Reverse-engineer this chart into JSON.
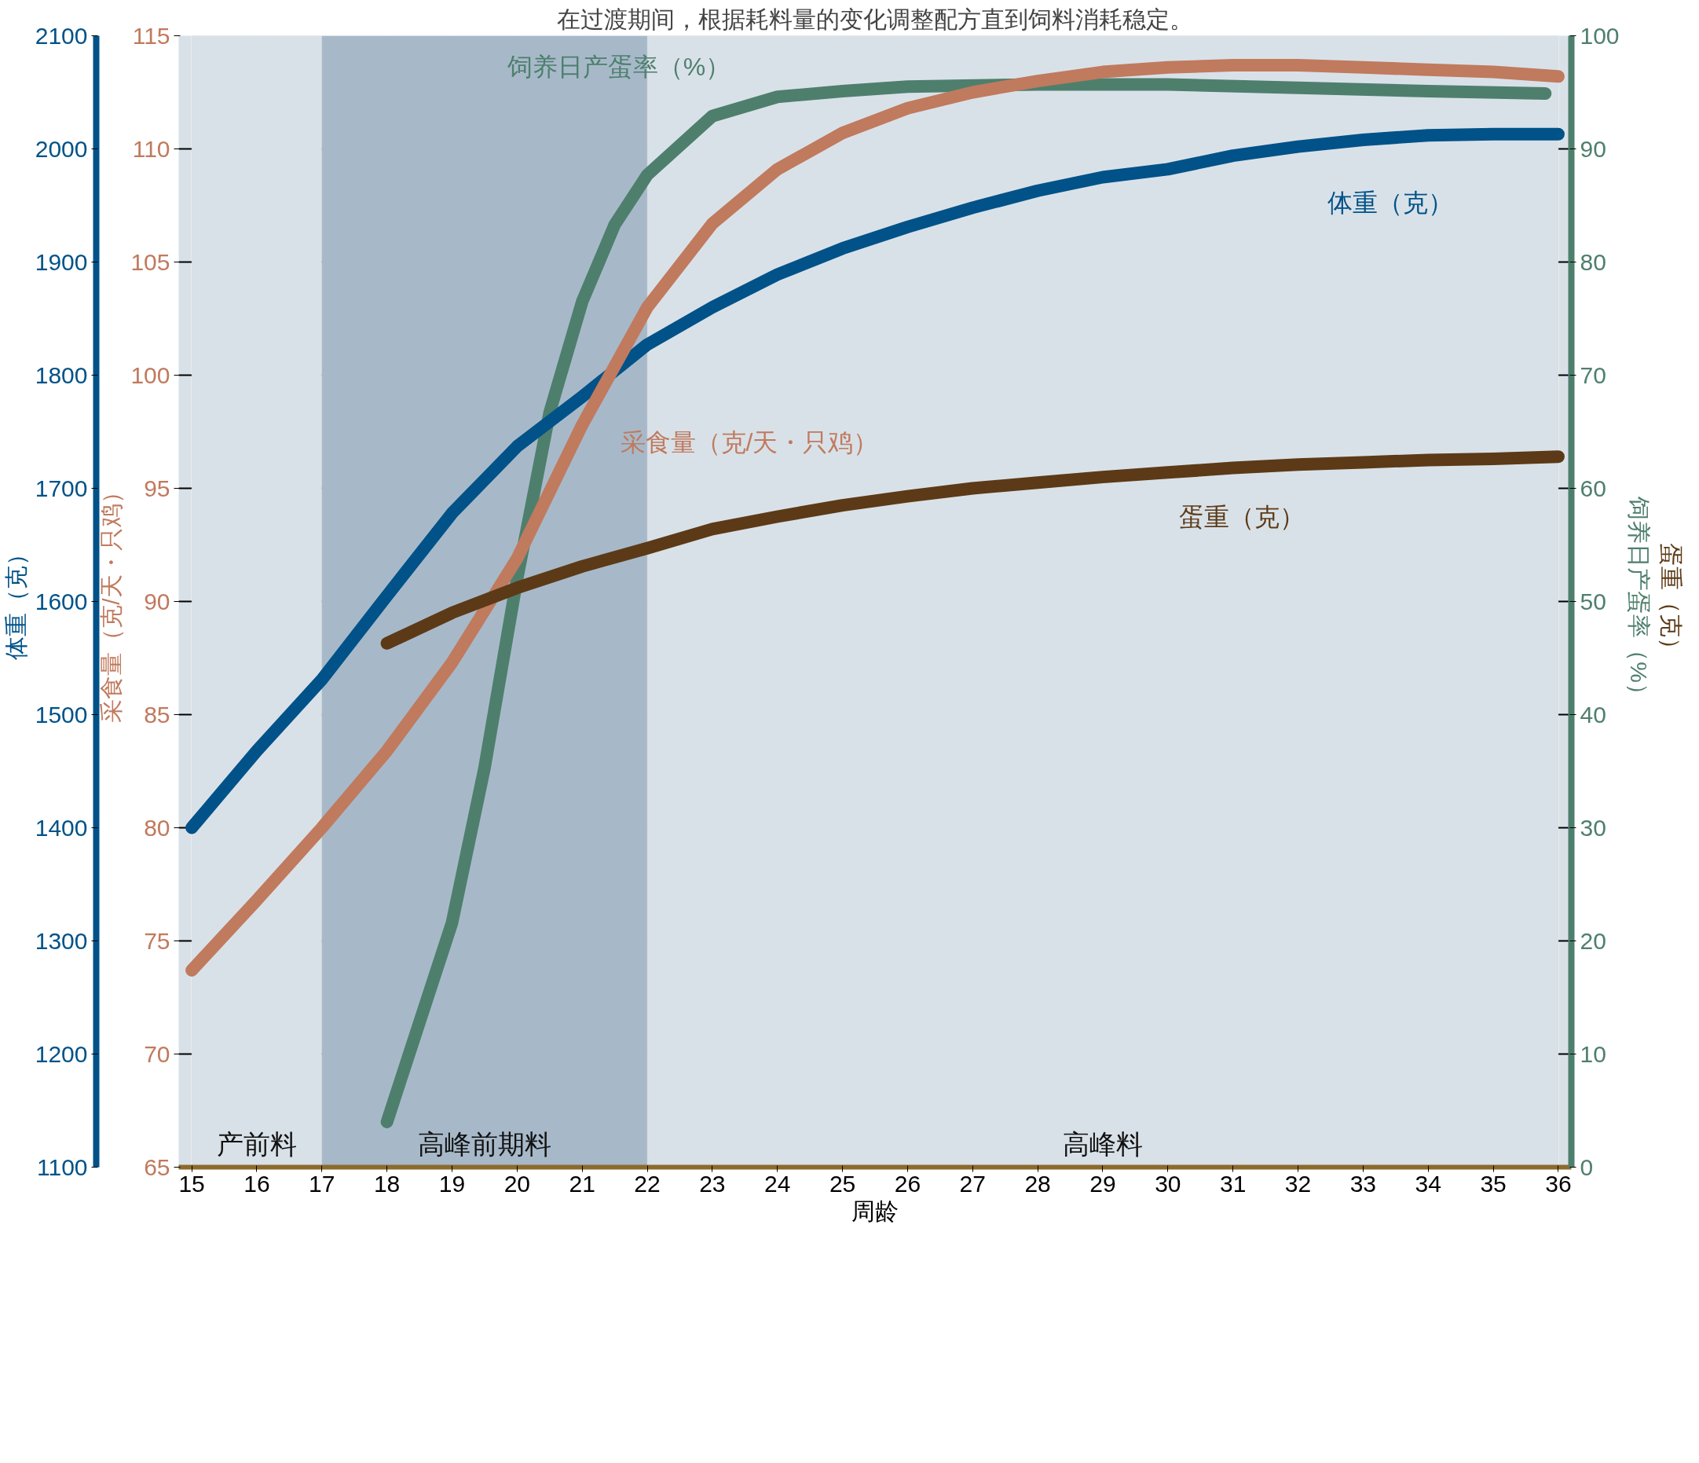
{
  "chart_data": {
    "type": "line",
    "title": "在过渡期间，根据耗料量的变化调整配方直到饲料消耗稳定。",
    "xlabel": "周龄",
    "ylabel": "采食量（克/天・只鸡）",
    "y2label": "体重（克）",
    "y3label": "饲养日产蛋率（%）",
    "annotations": [
      "蛋重（克）"
    ],
    "xlim": [
      14.8,
      36.2
    ],
    "xticks": [
      15,
      16,
      17,
      18,
      19,
      20,
      21,
      22,
      23,
      24,
      25,
      26,
      27,
      28,
      29,
      30,
      31,
      32,
      33,
      34,
      35,
      36
    ],
    "ylim": [
      65,
      115
    ],
    "yticks": [
      65,
      70,
      75,
      80,
      85,
      90,
      95,
      100,
      105,
      110,
      115
    ],
    "y2lim": [
      1100,
      2100
    ],
    "y2ticks": [
      1100,
      1200,
      1300,
      1400,
      1500,
      1600,
      1700,
      1800,
      1900,
      2000,
      2100
    ],
    "y3lim": [
      0,
      100
    ],
    "y3ticks": [
      0,
      10,
      20,
      30,
      40,
      50,
      60,
      70,
      80,
      90,
      100
    ],
    "grid": true,
    "line_style": "solid",
    "bands": [
      {
        "axis": "x",
        "from": 15,
        "to": 17,
        "label": "产前料",
        "color": "#d9e1e8"
      },
      {
        "axis": "x",
        "from": 17,
        "to": 22,
        "label": "高峰前期料",
        "color": "#a7b9c9"
      },
      {
        "axis": "x",
        "from": 22,
        "to": 36,
        "label": "高峰料",
        "color": "#d9e1e8"
      }
    ],
    "series": [
      {
        "name": "饲养日产蛋率（%）",
        "color": "#4e7f6d",
        "axis": "y3",
        "x": [
          18,
          19,
          19.5,
          20,
          20.5,
          21,
          21.5,
          22,
          23,
          24,
          25,
          26,
          28,
          30,
          32,
          34,
          35.8
        ],
        "values": [
          4,
          21.6,
          35.3,
          52,
          66.7,
          76.5,
          83.3,
          87.7,
          92.9,
          94.6,
          95.1,
          95.5,
          95.7,
          95.7,
          95.4,
          95.1,
          94.9
        ]
      },
      {
        "name": "体重（克）",
        "color": "#005288",
        "axis": "y2",
        "x": [
          15,
          16,
          17,
          18,
          19,
          20,
          21,
          22,
          23,
          24,
          25,
          26,
          27,
          28,
          29,
          30,
          31,
          32,
          33,
          34,
          35,
          36
        ],
        "values": [
          1400,
          1468,
          1531,
          1605,
          1678,
          1737,
          1781,
          1827,
          1860,
          1889,
          1912,
          1931,
          1948,
          1963,
          1975,
          1982,
          1994,
          2002,
          2008,
          2012,
          2013,
          2013
        ]
      },
      {
        "name": "采食量（克/天・只鸡）",
        "color": "#c07a5e",
        "x": [
          15,
          16,
          17,
          18,
          19,
          20,
          21,
          22,
          23,
          24,
          25,
          26,
          27,
          28,
          29,
          30,
          31,
          32,
          33,
          34,
          35,
          36
        ],
        "values": [
          73.7,
          76.8,
          80.0,
          83.4,
          87.3,
          91.9,
          97.8,
          103.0,
          106.7,
          109.1,
          110.7,
          111.8,
          112.5,
          113.0,
          113.4,
          113.6,
          113.7,
          113.7,
          113.6,
          113.5,
          113.4,
          113.2
        ]
      },
      {
        "name": "蛋重（克）",
        "color": "#5c3a17",
        "axis": "y3",
        "x": [
          18,
          19,
          20,
          21,
          22,
          23,
          24,
          25,
          26,
          27,
          28,
          29,
          30,
          31,
          32,
          33,
          34,
          35,
          36
        ],
        "values": [
          46.3,
          49.0,
          51.2,
          53.1,
          54.7,
          56.4,
          57.5,
          58.5,
          59.3,
          60.0,
          60.5,
          61.0,
          61.4,
          61.8,
          62.1,
          62.3,
          62.5,
          62.6,
          62.8
        ]
      }
    ]
  }
}
